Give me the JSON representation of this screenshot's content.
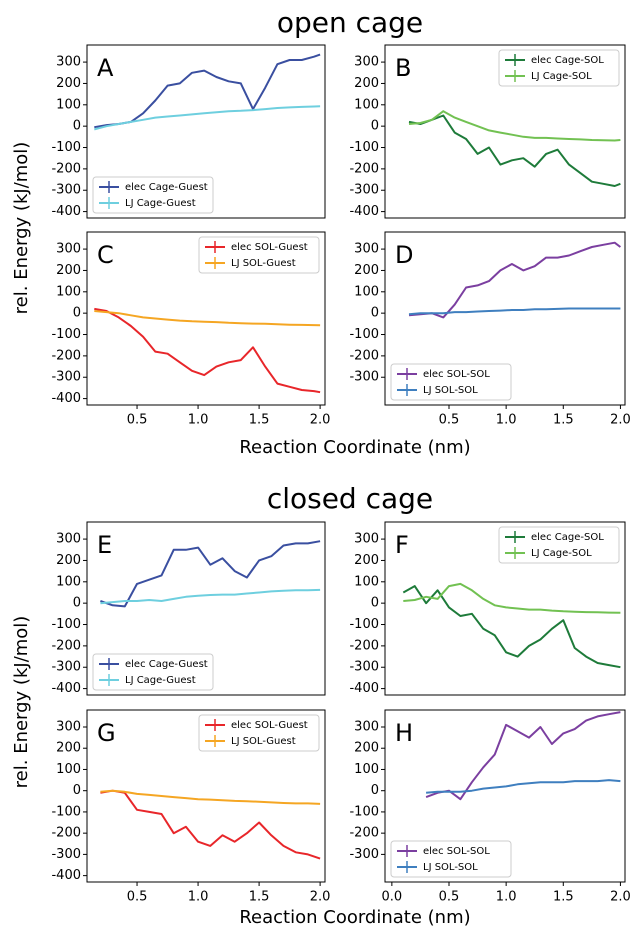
{
  "sections": [
    {
      "title": "open cage",
      "xlabel": "Reaction Coordinate (nm)",
      "ylabel": "rel. Energy (kJ/mol)"
    },
    {
      "title": "closed cage",
      "xlabel": "Reaction Coordinate (nm)",
      "ylabel": "rel. Energy (kJ/mol)"
    }
  ],
  "chart_data": [
    {
      "type": "line",
      "label": "A",
      "legend": "lower left",
      "xlim": [
        0.09,
        2.04
      ],
      "ylim": [
        -430,
        380
      ],
      "yticks": [
        -400,
        -300,
        -200,
        -100,
        0,
        100,
        200,
        300
      ],
      "x": [
        0.15,
        0.25,
        0.35,
        0.45,
        0.55,
        0.65,
        0.75,
        0.85,
        0.95,
        1.05,
        1.15,
        1.25,
        1.35,
        1.45,
        1.55,
        1.65,
        1.75,
        1.85,
        1.95,
        2.0
      ],
      "series": [
        {
          "name": "elec Cage-Guest",
          "color": "#3a4fa0",
          "values": [
            -5,
            5,
            10,
            20,
            60,
            120,
            190,
            200,
            250,
            260,
            230,
            210,
            200,
            80,
            180,
            290,
            310,
            310,
            325,
            335
          ]
        },
        {
          "name": "LJ Cage-Guest",
          "color": "#6ecfdf",
          "values": [
            -15,
            0,
            10,
            20,
            30,
            40,
            45,
            50,
            55,
            60,
            65,
            70,
            72,
            75,
            80,
            85,
            88,
            90,
            92,
            93
          ]
        }
      ]
    },
    {
      "type": "line",
      "label": "B",
      "legend": "upper right",
      "xlim": [
        -0.06,
        2.04
      ],
      "ylim": [
        -430,
        380
      ],
      "yticks": [
        -400,
        -300,
        -200,
        -100,
        0,
        100,
        200,
        300
      ],
      "x": [
        0.15,
        0.25,
        0.35,
        0.45,
        0.55,
        0.65,
        0.75,
        0.85,
        0.95,
        1.05,
        1.15,
        1.25,
        1.35,
        1.45,
        1.55,
        1.65,
        1.75,
        1.85,
        1.95,
        2.0
      ],
      "series": [
        {
          "name": "elec Cage-SOL",
          "color": "#1e7b3a",
          "values": [
            20,
            10,
            30,
            50,
            -30,
            -60,
            -130,
            -100,
            -180,
            -160,
            -150,
            -190,
            -130,
            -110,
            -180,
            -220,
            -260,
            -270,
            -280,
            -270
          ]
        },
        {
          "name": "LJ Cage-SOL",
          "color": "#72c152",
          "values": [
            10,
            15,
            30,
            70,
            40,
            20,
            0,
            -20,
            -30,
            -40,
            -50,
            -55,
            -55,
            -58,
            -60,
            -62,
            -65,
            -66,
            -67,
            -65
          ]
        }
      ]
    },
    {
      "type": "line",
      "label": "C",
      "legend": "upper right",
      "xlim": [
        0.09,
        2.04
      ],
      "ylim": [
        -430,
        380
      ],
      "yticks": [
        -400,
        -300,
        -200,
        -100,
        0,
        100,
        200,
        300
      ],
      "xticks": [
        0.5,
        {
          "value": 1,
          "label": "1.0"
        },
        1.5,
        {
          "value": 2,
          "label": "2.0"
        }
      ],
      "x": [
        0.15,
        0.25,
        0.35,
        0.45,
        0.55,
        0.65,
        0.75,
        0.85,
        0.95,
        1.05,
        1.15,
        1.25,
        1.35,
        1.45,
        1.55,
        1.65,
        1.75,
        1.85,
        1.95,
        2.0
      ],
      "series": [
        {
          "name": "elec SOL-Guest",
          "color": "#e8262a",
          "values": [
            20,
            10,
            -20,
            -60,
            -110,
            -180,
            -190,
            -230,
            -270,
            -290,
            -250,
            -230,
            -220,
            -160,
            -250,
            -330,
            -345,
            -360,
            -365,
            -370
          ]
        },
        {
          "name": "LJ SOL-Guest",
          "color": "#f5a623",
          "values": [
            10,
            5,
            0,
            -10,
            -20,
            -25,
            -30,
            -35,
            -38,
            -40,
            -42,
            -45,
            -47,
            -49,
            -50,
            -52,
            -54,
            -55,
            -56,
            -57
          ]
        }
      ]
    },
    {
      "type": "line",
      "label": "D",
      "legend": "lower left",
      "xlim": [
        -0.06,
        2.04
      ],
      "ylim": [
        -430,
        380
      ],
      "yticks": [
        -300,
        -200,
        -100,
        0,
        100,
        200,
        300
      ],
      "xticks": [
        0.5,
        {
          "value": 1,
          "label": "1.0"
        },
        1.5,
        {
          "value": 2,
          "label": "2.0"
        }
      ],
      "x": [
        0.15,
        0.25,
        0.35,
        0.45,
        0.55,
        0.65,
        0.75,
        0.85,
        0.95,
        1.05,
        1.15,
        1.25,
        1.35,
        1.45,
        1.55,
        1.65,
        1.75,
        1.85,
        1.95,
        2.0
      ],
      "series": [
        {
          "name": "elec SOL-SOL",
          "color": "#7b3fa0",
          "values": [
            -10,
            -5,
            0,
            -20,
            40,
            120,
            130,
            150,
            200,
            230,
            200,
            220,
            260,
            260,
            270,
            290,
            310,
            320,
            330,
            310
          ]
        },
        {
          "name": "LJ SOL-SOL",
          "color": "#3f7fbf",
          "values": [
            -5,
            0,
            0,
            0,
            5,
            5,
            8,
            10,
            12,
            15,
            15,
            18,
            18,
            20,
            22,
            22,
            22,
            22,
            22,
            22
          ]
        }
      ]
    },
    {
      "type": "line",
      "label": "E",
      "legend": "lower left",
      "xlim": [
        0.09,
        2.04
      ],
      "ylim": [
        -430,
        380
      ],
      "yticks": [
        -400,
        -300,
        -200,
        -100,
        0,
        100,
        200,
        300
      ],
      "x": [
        0.2,
        0.3,
        0.4,
        0.5,
        0.6,
        0.7,
        0.8,
        0.9,
        1.0,
        1.1,
        1.2,
        1.3,
        1.4,
        1.5,
        1.6,
        1.7,
        1.8,
        1.9,
        2.0
      ],
      "series": [
        {
          "name": "elec Cage-Guest",
          "color": "#3a4fa0",
          "values": [
            10,
            -10,
            -15,
            90,
            110,
            130,
            250,
            250,
            260,
            180,
            210,
            150,
            120,
            200,
            220,
            270,
            280,
            280,
            290
          ]
        },
        {
          "name": "LJ Cage-Guest",
          "color": "#6ecfdf",
          "values": [
            0,
            5,
            10,
            10,
            15,
            10,
            20,
            30,
            35,
            38,
            40,
            40,
            45,
            50,
            55,
            58,
            60,
            60,
            62
          ]
        }
      ]
    },
    {
      "type": "line",
      "label": "F",
      "legend": "upper right",
      "xlim": [
        -0.06,
        2.04
      ],
      "ylim": [
        -430,
        380
      ],
      "yticks": [
        -400,
        -300,
        -200,
        -100,
        0,
        100,
        200,
        300
      ],
      "x": [
        0.1,
        0.2,
        0.3,
        0.4,
        0.5,
        0.6,
        0.7,
        0.8,
        0.9,
        1.0,
        1.1,
        1.2,
        1.3,
        1.4,
        1.5,
        1.6,
        1.7,
        1.8,
        1.9,
        2.0
      ],
      "series": [
        {
          "name": "elec Cage-SOL",
          "color": "#1e7b3a",
          "values": [
            50,
            80,
            0,
            60,
            -20,
            -60,
            -50,
            -120,
            -150,
            -230,
            -250,
            -200,
            -170,
            -120,
            -80,
            -210,
            -250,
            -280,
            -290,
            -300
          ]
        },
        {
          "name": "LJ Cage-SOL",
          "color": "#72c152",
          "values": [
            10,
            15,
            30,
            20,
            80,
            90,
            60,
            20,
            -10,
            -20,
            -25,
            -30,
            -30,
            -35,
            -38,
            -40,
            -42,
            -43,
            -44,
            -45
          ]
        }
      ]
    },
    {
      "type": "line",
      "label": "G",
      "legend": "upper right",
      "xlim": [
        0.09,
        2.04
      ],
      "ylim": [
        -430,
        380
      ],
      "yticks": [
        -400,
        -300,
        -200,
        -100,
        0,
        100,
        200,
        300
      ],
      "xticks": [
        0.5,
        {
          "value": 1,
          "label": "1.0"
        },
        1.5,
        {
          "value": 2,
          "label": "2.0"
        }
      ],
      "x": [
        0.2,
        0.3,
        0.4,
        0.5,
        0.6,
        0.7,
        0.8,
        0.9,
        1.0,
        1.1,
        1.2,
        1.3,
        1.4,
        1.5,
        1.6,
        1.7,
        1.8,
        1.9,
        2.0
      ],
      "series": [
        {
          "name": "elec SOL-Guest",
          "color": "#e8262a",
          "values": [
            -10,
            0,
            -10,
            -90,
            -100,
            -110,
            -200,
            -170,
            -240,
            -260,
            -210,
            -240,
            -200,
            -150,
            -210,
            -260,
            -290,
            -300,
            -320
          ]
        },
        {
          "name": "LJ SOL-Guest",
          "color": "#f5a623",
          "values": [
            -5,
            0,
            -5,
            -15,
            -20,
            -25,
            -30,
            -35,
            -40,
            -42,
            -45,
            -48,
            -50,
            -52,
            -55,
            -58,
            -60,
            -60,
            -62
          ]
        }
      ]
    },
    {
      "type": "line",
      "label": "H",
      "legend": "lower left",
      "xlim": [
        -0.06,
        2.04
      ],
      "ylim": [
        -430,
        380
      ],
      "yticks": [
        -300,
        -200,
        -100,
        0,
        100,
        200,
        300
      ],
      "xticks": [
        {
          "value": 0,
          "label": "0.0"
        },
        0.5,
        {
          "value": 1,
          "label": "1.0"
        },
        1.5,
        {
          "value": 2,
          "label": "2.0"
        }
      ],
      "x": [
        0.3,
        0.4,
        0.5,
        0.6,
        0.7,
        0.8,
        0.9,
        1.0,
        1.1,
        1.2,
        1.3,
        1.4,
        1.5,
        1.6,
        1.7,
        1.8,
        1.9,
        2.0
      ],
      "series": [
        {
          "name": "elec SOL-SOL",
          "color": "#7b3fa0",
          "values": [
            -30,
            -10,
            0,
            -40,
            40,
            110,
            170,
            310,
            280,
            250,
            300,
            220,
            270,
            290,
            330,
            350,
            360,
            370
          ]
        },
        {
          "name": "LJ SOL-SOL",
          "color": "#3f7fbf",
          "values": [
            -10,
            -5,
            -5,
            -5,
            0,
            10,
            15,
            20,
            30,
            35,
            40,
            40,
            40,
            45,
            45,
            45,
            50,
            45
          ]
        }
      ]
    }
  ]
}
